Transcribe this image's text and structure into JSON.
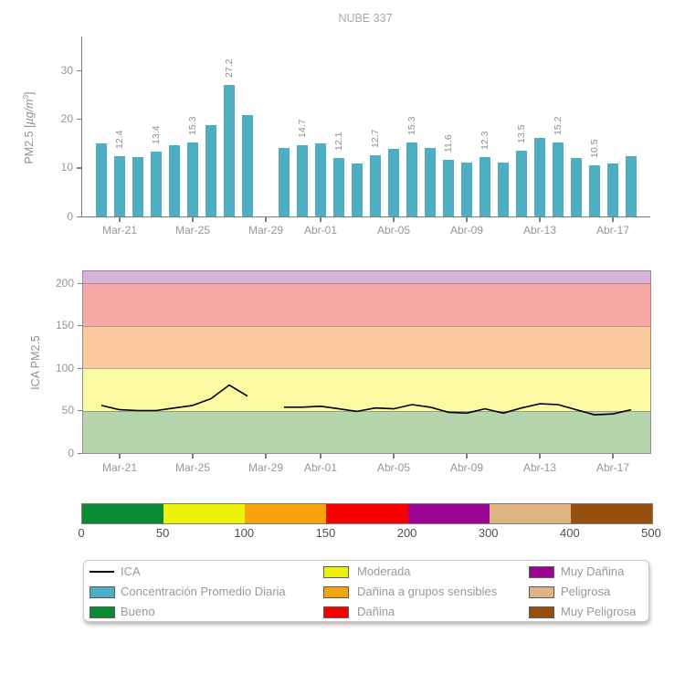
{
  "title": "NUBE 337",
  "chart_data": [
    {
      "type": "bar",
      "title": "NUBE 337",
      "ylabel": "PM2.5 [µg/m³]",
      "ylabel_parts": {
        "prefix": "PM2.5 [",
        "italic": "µg/m",
        "sup": "3",
        "suffix": "]"
      },
      "bar_color": "#4EAEC2",
      "ylim": [
        0,
        37
      ],
      "yticks": [
        0,
        10,
        20,
        30
      ],
      "x_dates": [
        "Mar-20",
        "Mar-21",
        "Mar-22",
        "Mar-23",
        "Mar-24",
        "Mar-25",
        "Mar-26",
        "Mar-27",
        "Mar-28",
        "Mar-29",
        "Mar-30",
        "Mar-31",
        "Abr-01",
        "Abr-02",
        "Abr-03",
        "Abr-04",
        "Abr-05",
        "Abr-06",
        "Abr-07",
        "Abr-08",
        "Abr-09",
        "Abr-10",
        "Abr-11",
        "Abr-12",
        "Abr-13",
        "Abr-14",
        "Abr-15",
        "Abr-16",
        "Abr-17",
        "Abr-18"
      ],
      "values": [
        15.1,
        12.4,
        12.2,
        13.4,
        14.6,
        15.3,
        18.9,
        27.2,
        20.9,
        null,
        14.1,
        14.7,
        15.0,
        12.1,
        10.9,
        12.7,
        13.9,
        15.3,
        14.2,
        11.6,
        11.2,
        12.3,
        11.1,
        13.5,
        16.2,
        15.2,
        12.0,
        10.5,
        11.0,
        12.5
      ],
      "bar_labels": [
        null,
        "12.4",
        null,
        "13.4",
        null,
        "15.3",
        null,
        "27.2",
        null,
        null,
        null,
        "14.7",
        null,
        "12.1",
        null,
        "12.7",
        null,
        "15.3",
        null,
        "11.6",
        null,
        "12.3",
        null,
        "13.5",
        null,
        "15.2",
        null,
        "10.5",
        null,
        null
      ],
      "xticks": [
        {
          "label": "Mar-21",
          "day": 1
        },
        {
          "label": "Mar-25",
          "day": 5
        },
        {
          "label": "Mar-29",
          "day": 9
        },
        {
          "label": "Abr-01",
          "day": 12
        },
        {
          "label": "Abr-05",
          "day": 16
        },
        {
          "label": "Abr-09",
          "day": 20
        },
        {
          "label": "Abr-13",
          "day": 24
        },
        {
          "label": "Abr-17",
          "day": 28
        }
      ]
    },
    {
      "type": "line",
      "series_name": "ICA",
      "ylabel": "ICA PM2.5",
      "line_color": "#000000",
      "ylim": [
        0,
        214
      ],
      "yticks": [
        0,
        50,
        100,
        150,
        200
      ],
      "x_dates": [
        "Mar-20",
        "Mar-21",
        "Mar-22",
        "Mar-23",
        "Mar-24",
        "Mar-25",
        "Mar-26",
        "Mar-27",
        "Mar-28",
        "Mar-29",
        "Mar-30",
        "Mar-31",
        "Abr-01",
        "Abr-02",
        "Abr-03",
        "Abr-04",
        "Abr-05",
        "Abr-06",
        "Abr-07",
        "Abr-08",
        "Abr-09",
        "Abr-10",
        "Abr-11",
        "Abr-12",
        "Abr-13",
        "Abr-14",
        "Abr-15",
        "Abr-16",
        "Abr-17",
        "Abr-18"
      ],
      "values": [
        56,
        51,
        50,
        50,
        53,
        56,
        64,
        80,
        67,
        null,
        54,
        54,
        55,
        52,
        49,
        53,
        52,
        57,
        54,
        48,
        47,
        52,
        47,
        53,
        58,
        57,
        51,
        45,
        46,
        51
      ],
      "bands": [
        {
          "label": "Bueno",
          "from": 0,
          "to": 50,
          "color": "#b7d5ad"
        },
        {
          "label": "Moderada",
          "from": 50,
          "to": 100,
          "color": "#fbfaa3"
        },
        {
          "label": "Dañina a grupos sensibles",
          "from": 100,
          "to": 150,
          "color": "#fbc99e"
        },
        {
          "label": "Dañina",
          "from": 150,
          "to": 200,
          "color": "#f8a8a4"
        },
        {
          "label": "Muy Dañina",
          "from": 200,
          "to": 214,
          "color": "#d9b2dc"
        }
      ],
      "xticks": [
        {
          "label": "Mar-21",
          "day": 1
        },
        {
          "label": "Mar-25",
          "day": 5
        },
        {
          "label": "Mar-29",
          "day": 9
        },
        {
          "label": "Abr-01",
          "day": 12
        },
        {
          "label": "Abr-05",
          "day": 16
        },
        {
          "label": "Abr-09",
          "day": 20
        },
        {
          "label": "Abr-13",
          "day": 24
        },
        {
          "label": "Abr-17",
          "day": 28
        }
      ]
    },
    {
      "type": "colorbar",
      "segments": [
        {
          "label": "Bueno",
          "color": "#0A8A32"
        },
        {
          "label": "Moderada",
          "color": "#EEF20B"
        },
        {
          "label": "Dañina a grupos sensibles",
          "color": "#F7A40B"
        },
        {
          "label": "Dañina",
          "color": "#F70000"
        },
        {
          "label": "Muy Dañina",
          "color": "#9A0692"
        },
        {
          "label": "Peligrosa",
          "color": "#DDB584"
        },
        {
          "label": "Muy Peligrosa",
          "color": "#97500F"
        }
      ],
      "tick_labels": [
        "0",
        "50",
        "100",
        "150",
        "200",
        "300",
        "400",
        "500"
      ]
    }
  ],
  "legend": {
    "columns": [
      [
        {
          "marker": "line",
          "color": "#000000",
          "label": "ICA"
        },
        {
          "marker": "swatch",
          "color": "#4EAEC2",
          "label": "Concentración Promedio Diaria"
        },
        {
          "marker": "swatch",
          "color": "#0A8A32",
          "label": "Bueno"
        }
      ],
      [
        {
          "marker": "swatch",
          "color": "#EEF20B",
          "label": "Moderada"
        },
        {
          "marker": "swatch",
          "color": "#F7A40B",
          "label": "Dañina a grupos sensibles"
        },
        {
          "marker": "swatch",
          "color": "#F70000",
          "label": "Dañina"
        }
      ],
      [
        {
          "marker": "swatch",
          "color": "#9A0692",
          "label": "Muy Dañina"
        },
        {
          "marker": "swatch",
          "color": "#DDB584",
          "label": "Peligrosa"
        },
        {
          "marker": "swatch",
          "color": "#97500F",
          "label": "Muy Peligrosa"
        }
      ]
    ]
  }
}
